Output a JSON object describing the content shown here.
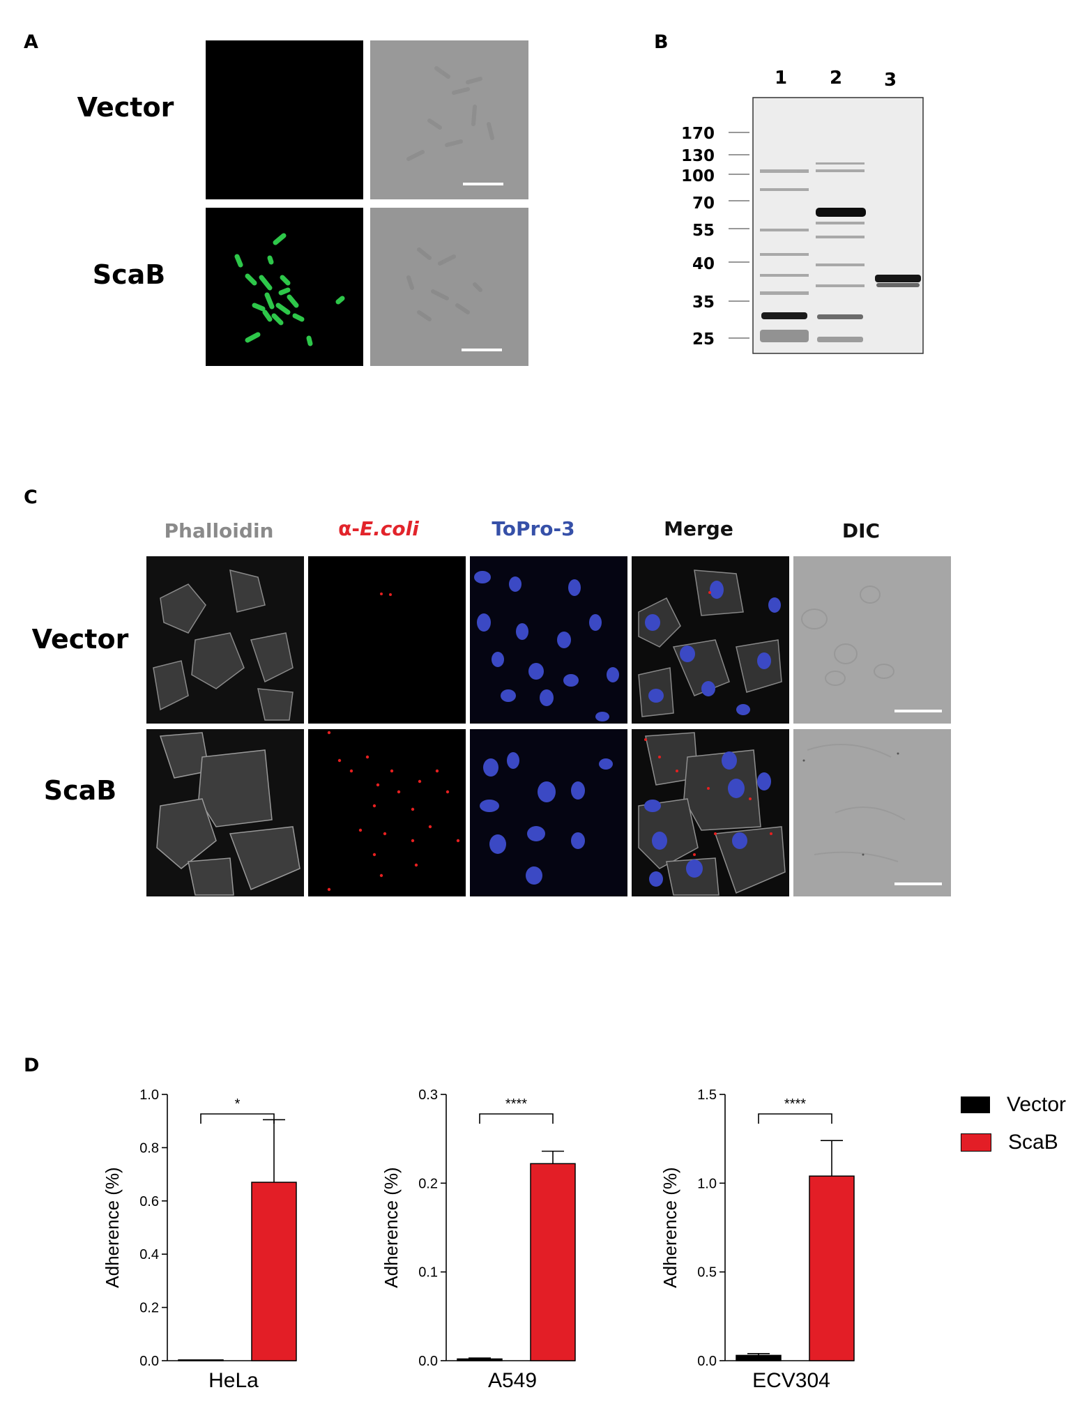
{
  "panel_labels": {
    "a": "A",
    "b": "B",
    "c": "C",
    "d": "D"
  },
  "panel_a": {
    "rows": [
      "Vector",
      "ScaB"
    ]
  },
  "panel_b": {
    "lanes": [
      "1",
      "2",
      "3"
    ],
    "markers": [
      "170",
      "130",
      "100",
      "70",
      "55",
      "40",
      "35",
      "25"
    ]
  },
  "panel_c": {
    "columns": [
      {
        "label_prefix": "",
        "label_italic": "Phalloidin",
        "color": "#8a8a8a",
        "italic": false
      },
      {
        "label_prefix": "α-",
        "label_italic": "E.coli",
        "color": "#e2242b",
        "italic": true
      },
      {
        "label_prefix": "",
        "label_italic": "ToPro-3",
        "color": "#3650a8",
        "italic": false
      },
      {
        "label_prefix": "",
        "label_italic": "Merge",
        "color": "#111111",
        "italic": false
      },
      {
        "label_prefix": "",
        "label_italic": "DIC",
        "color": "#111111",
        "italic": false
      }
    ],
    "rows": [
      "Vector",
      "ScaB"
    ]
  },
  "colors": {
    "vector": "#000000",
    "scab": "#e31e26"
  },
  "legend": [
    "Vector",
    "ScaB"
  ],
  "chart_data": [
    {
      "type": "bar",
      "categories": [
        "Vector",
        "ScaB"
      ],
      "xlabel": "HeLa",
      "ylabel": "Adherence (%)",
      "ylim": [
        0,
        1.0
      ],
      "ticks": [
        "0.0",
        "0.2",
        "0.4",
        "0.6",
        "0.8",
        "1.0"
      ],
      "tick_values": [
        0,
        0.2,
        0.4,
        0.6,
        0.8,
        1.0
      ],
      "values": [
        0.003,
        0.67
      ],
      "errors": [
        0.0,
        0.235
      ],
      "significance": "*"
    },
    {
      "type": "bar",
      "categories": [
        "Vector",
        "ScaB"
      ],
      "xlabel": "A549",
      "ylabel": "Adherence (%)",
      "ylim": [
        0,
        0.3
      ],
      "ticks": [
        "0.0",
        "0.1",
        "0.2",
        "0.3"
      ],
      "tick_values": [
        0,
        0.1,
        0.2,
        0.3
      ],
      "values": [
        0.002,
        0.222
      ],
      "errors": [
        0.001,
        0.014
      ],
      "significance": "****"
    },
    {
      "type": "bar",
      "categories": [
        "Vector",
        "ScaB"
      ],
      "xlabel": "ECV304",
      "ylabel": "Adherence (%)",
      "ylim": [
        0,
        1.5
      ],
      "ticks": [
        "0.0",
        "0.5",
        "1.0",
        "1.5"
      ],
      "tick_values": [
        0,
        0.5,
        1.0,
        1.5
      ],
      "values": [
        0.03,
        1.04
      ],
      "errors": [
        0.01,
        0.2
      ],
      "significance": "****"
    }
  ]
}
